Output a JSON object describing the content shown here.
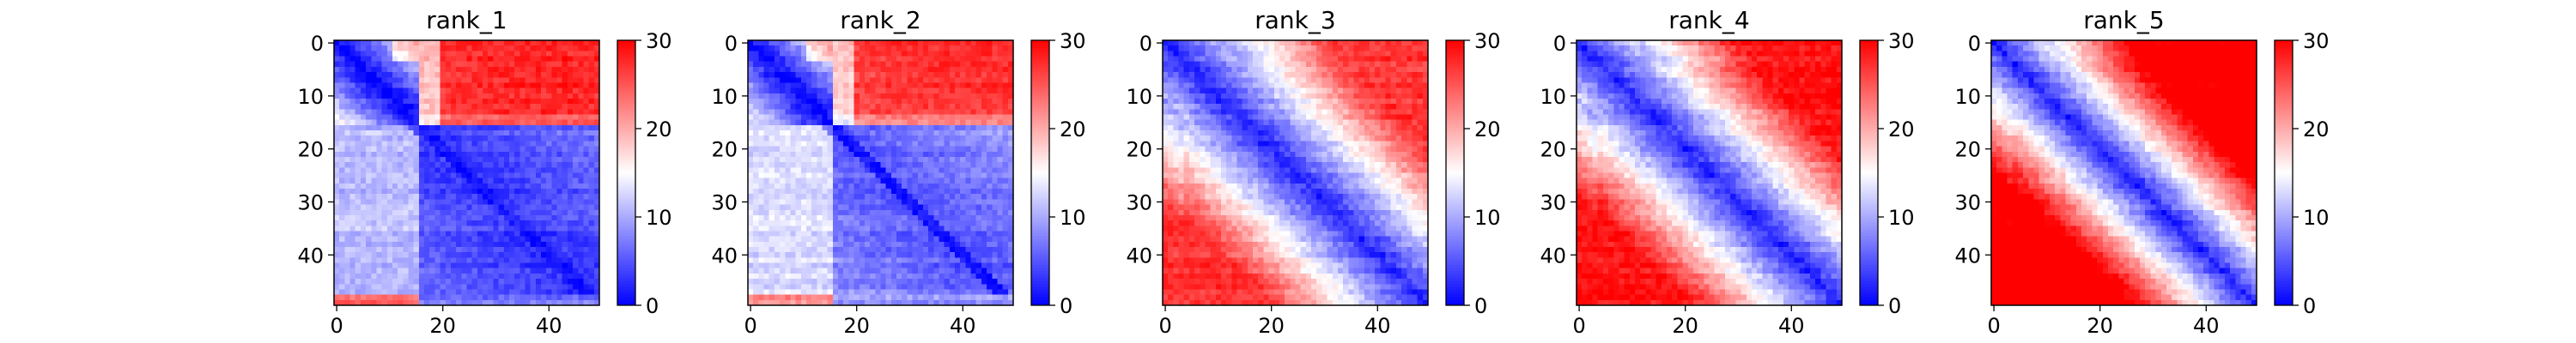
{
  "chart_data": [
    {
      "type": "heatmap",
      "title": "rank_1",
      "rows": 50,
      "cols": 50,
      "x_ticks": [
        0,
        20,
        40
      ],
      "y_ticks": [
        0,
        10,
        20,
        30,
        40
      ],
      "colorbar": {
        "ticks": [
          0,
          10,
          20,
          30
        ],
        "vmin": 0,
        "vmax": 30,
        "colormap": "bwr"
      },
      "pattern": {
        "kind": "domain",
        "split": 16,
        "diag_scale": 14,
        "diag_slope": 1.0,
        "corner_value": 28,
        "upper_right_value": 26,
        "lower_left_value": 11,
        "lower_right_value": 3,
        "bottom_strip_rows": 2,
        "bottom_strip_value": 24
      }
    },
    {
      "type": "heatmap",
      "title": "rank_2",
      "rows": 50,
      "cols": 50,
      "x_ticks": [
        0,
        20,
        40
      ],
      "y_ticks": [
        0,
        10,
        20,
        30,
        40
      ],
      "colorbar": {
        "ticks": [
          0,
          10,
          20,
          30
        ],
        "vmin": 0,
        "vmax": 30,
        "colormap": "bwr"
      },
      "pattern": {
        "kind": "domain",
        "split": 16,
        "diag_scale": 14,
        "diag_slope": 1.0,
        "corner_value": 27,
        "upper_right_value": 25,
        "lower_left_value": 13,
        "lower_right_value": 5,
        "bottom_strip_rows": 2,
        "bottom_strip_value": 22
      }
    },
    {
      "type": "heatmap",
      "title": "rank_3",
      "rows": 50,
      "cols": 50,
      "x_ticks": [
        0,
        20,
        40
      ],
      "y_ticks": [
        0,
        10,
        20,
        30,
        40
      ],
      "colorbar": {
        "ticks": [
          0,
          10,
          20,
          30
        ],
        "vmin": 0,
        "vmax": 30,
        "colormap": "bwr"
      },
      "pattern": {
        "kind": "distance",
        "diag_scale": 2.2,
        "diag_slope": 0.85,
        "max_value": 27
      }
    },
    {
      "type": "heatmap",
      "title": "rank_4",
      "rows": 50,
      "cols": 50,
      "x_ticks": [
        0,
        20,
        40
      ],
      "y_ticks": [
        0,
        10,
        20,
        30,
        40
      ],
      "colorbar": {
        "ticks": [
          0,
          10,
          20,
          30
        ],
        "vmin": 0,
        "vmax": 30,
        "colormap": "bwr"
      },
      "pattern": {
        "kind": "distance",
        "diag_scale": 2.2,
        "diag_slope": 0.95,
        "max_value": 29
      }
    },
    {
      "type": "heatmap",
      "title": "rank_5",
      "rows": 50,
      "cols": 50,
      "x_ticks": [
        0,
        20,
        40
      ],
      "y_ticks": [
        0,
        10,
        20,
        30,
        40
      ],
      "colorbar": {
        "ticks": [
          0,
          10,
          20,
          30
        ],
        "vmin": 0,
        "vmax": 30,
        "colormap": "bwr"
      },
      "pattern": {
        "kind": "distance",
        "diag_scale": 2.0,
        "diag_slope": 1.25,
        "max_value": 32
      }
    }
  ]
}
